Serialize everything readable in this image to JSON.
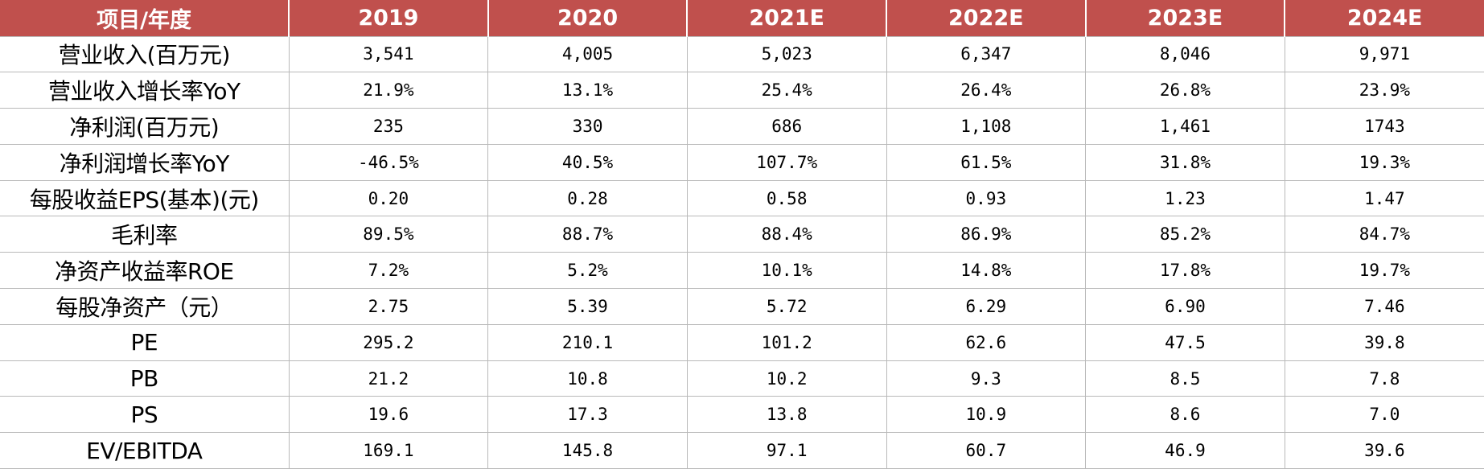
{
  "colors": {
    "header_bg": "#c0504d",
    "header_text": "#ffffff",
    "grid_line": "#b9b9b9"
  },
  "table": {
    "headers": [
      "项目/年度",
      "2019",
      "2020",
      "2021E",
      "2022E",
      "2023E",
      "2024E"
    ],
    "rows": [
      {
        "label": "营业收入(百万元)",
        "values": [
          "3,541",
          "4,005",
          "5,023",
          "6,347",
          "8,046",
          "9,971"
        ]
      },
      {
        "label": "营业收入增长率YoY",
        "values": [
          "21.9%",
          "13.1%",
          "25.4%",
          "26.4%",
          "26.8%",
          "23.9%"
        ]
      },
      {
        "label": "净利润(百万元)",
        "values": [
          "235",
          "330",
          "686",
          "1,108",
          "1,461",
          "1743"
        ]
      },
      {
        "label": "净利润增长率YoY",
        "values": [
          "-46.5%",
          "40.5%",
          "107.7%",
          "61.5%",
          "31.8%",
          "19.3%"
        ]
      },
      {
        "label": "每股收益EPS(基本)(元)",
        "values": [
          "0.20",
          "0.28",
          "0.58",
          "0.93",
          "1.23",
          "1.47"
        ]
      },
      {
        "label": "毛利率",
        "values": [
          "89.5%",
          "88.7%",
          "88.4%",
          "86.9%",
          "85.2%",
          "84.7%"
        ]
      },
      {
        "label": "净资产收益率ROE",
        "values": [
          "7.2%",
          "5.2%",
          "10.1%",
          "14.8%",
          "17.8%",
          "19.7%"
        ]
      },
      {
        "label": "每股净资产（元）",
        "values": [
          "2.75",
          "5.39",
          "5.72",
          "6.29",
          "6.90",
          "7.46"
        ]
      },
      {
        "label": "PE",
        "values": [
          "295.2",
          "210.1",
          "101.2",
          "62.6",
          "47.5",
          "39.8"
        ]
      },
      {
        "label": "PB",
        "values": [
          "21.2",
          "10.8",
          "10.2",
          "9.3",
          "8.5",
          "7.8"
        ]
      },
      {
        "label": "PS",
        "values": [
          "19.6",
          "17.3",
          "13.8",
          "10.9",
          "8.6",
          "7.0"
        ]
      },
      {
        "label": "EV/EBITDA",
        "values": [
          "169.1",
          "145.8",
          "97.1",
          "60.7",
          "46.9",
          "39.6"
        ]
      }
    ]
  }
}
